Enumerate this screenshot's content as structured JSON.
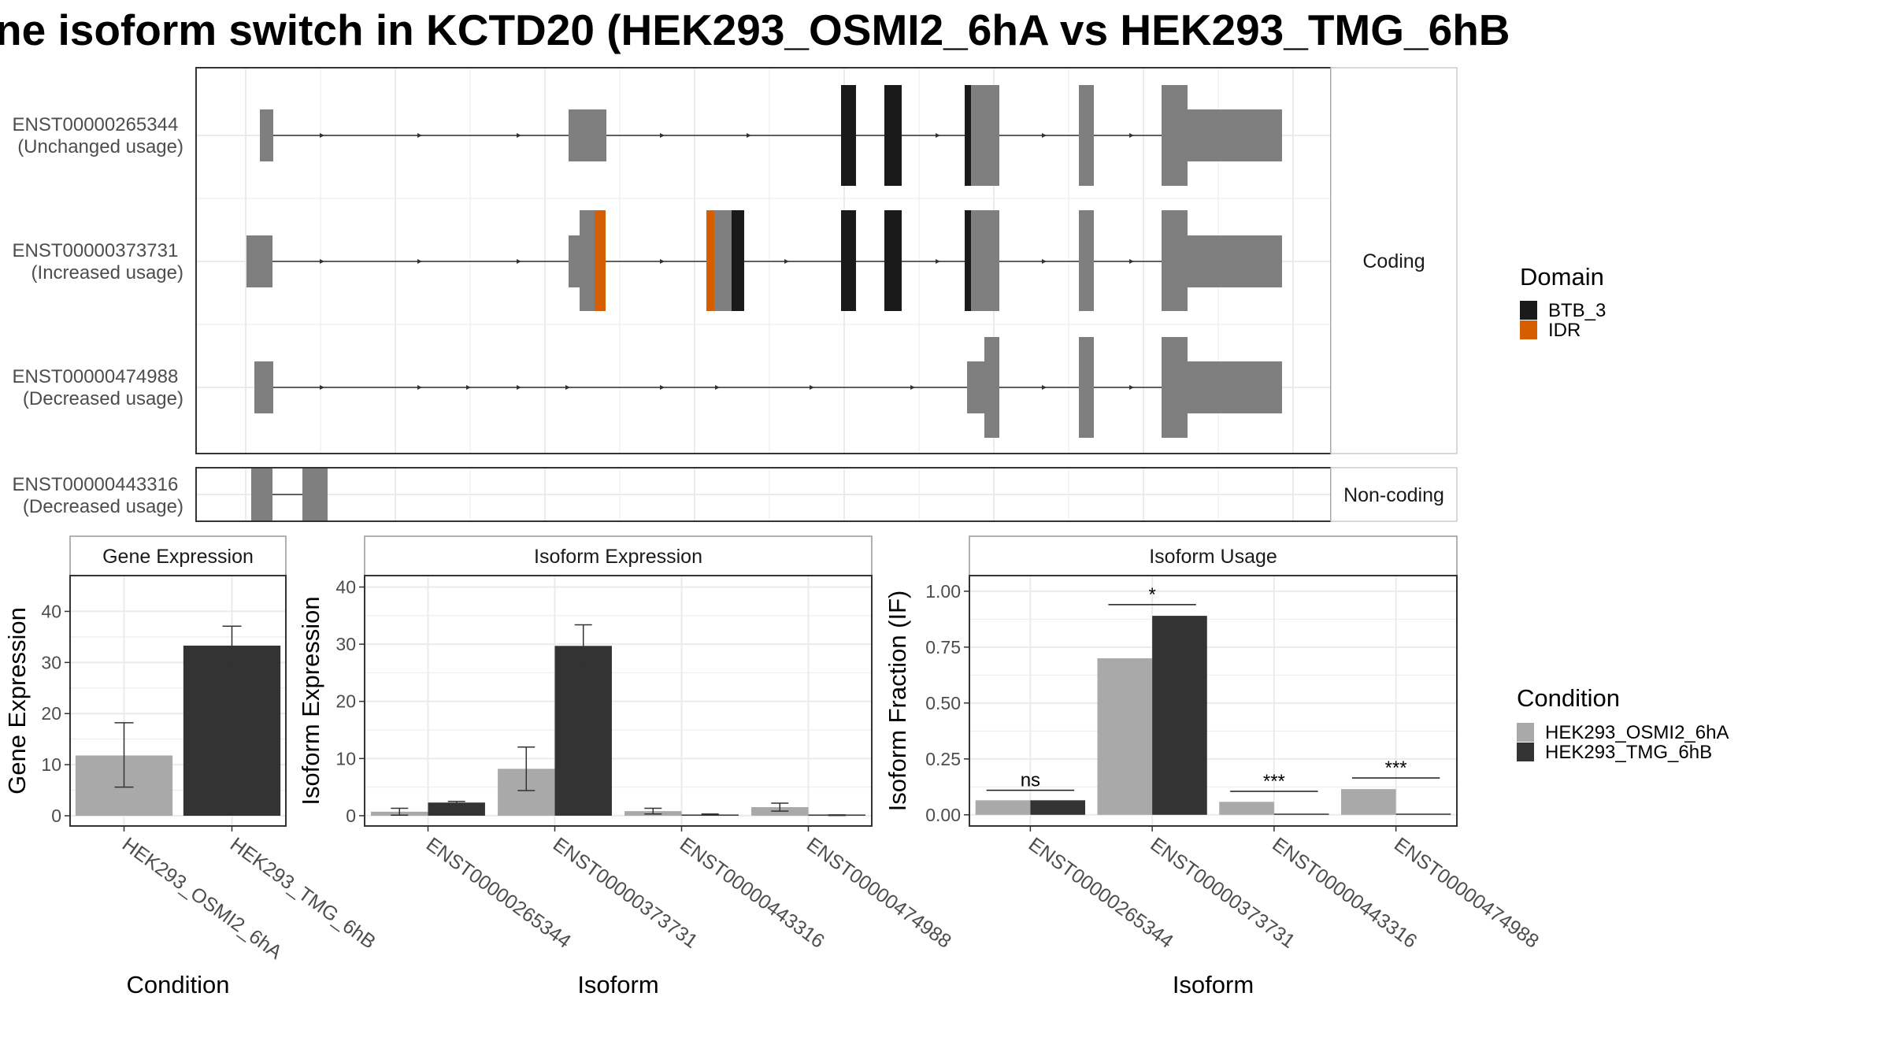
{
  "title": "ne isoform switch in KCTD20 (HEK293_OSMI2_6hA vs HEK293_TMG_6hB",
  "colors": {
    "BTB_3": "#1a1a1a",
    "IDR": "#d55e00",
    "exon": "#7f7f7f",
    "cond_a": "#a9a9a9",
    "cond_b": "#333333"
  },
  "structure": {
    "coding_label": "Coding",
    "noncoding_label": "Non-coding",
    "isoforms": [
      {
        "id": "ENST00000265344",
        "usage": "(Unchanged usage)",
        "group": "coding"
      },
      {
        "id": "ENST00000373731",
        "usage": "(Increased usage)",
        "group": "coding"
      },
      {
        "id": "ENST00000474988",
        "usage": "(Decreased usage)",
        "group": "coding"
      },
      {
        "id": "ENST00000443316",
        "usage": "(Decreased usage)",
        "group": "noncoding"
      }
    ]
  },
  "domain_legend": {
    "title": "Domain",
    "items": [
      {
        "label": "BTB_3",
        "color": "#1a1a1a"
      },
      {
        "label": "IDR",
        "color": "#d55e00"
      }
    ]
  },
  "condition_legend": {
    "title": "Condition",
    "items": [
      {
        "label": "HEK293_OSMI2_6hA",
        "color": "#a9a9a9"
      },
      {
        "label": "HEK293_TMG_6hB",
        "color": "#333333"
      }
    ]
  },
  "chart_data": [
    {
      "type": "bar",
      "title": "Gene Expression",
      "xlabel": "Condition",
      "ylabel": "Gene Expression",
      "categories": [
        "HEK293_OSMI2_6hA",
        "HEK293_TMG_6hB"
      ],
      "values": [
        11.8,
        33.3
      ],
      "error_low": [
        5.6,
        29.5
      ],
      "error_high": [
        18.2,
        37.1
      ],
      "ylim": [
        -2,
        47
      ],
      "yticks": [
        0,
        10,
        20,
        30,
        40
      ],
      "ytick_labels": [
        "0",
        "10",
        "20",
        "30",
        "40"
      ]
    },
    {
      "type": "bar",
      "title": "Isoform Expression",
      "xlabel": "Isoform",
      "ylabel": "Isoform Expression",
      "categories": [
        "ENST00000265344",
        "ENST00000373731",
        "ENST00000443316",
        "ENST00000474988"
      ],
      "series": [
        {
          "name": "HEK293_OSMI2_6hA",
          "values": [
            0.7,
            8.2,
            0.8,
            1.5
          ],
          "error_low": [
            0.1,
            4.4,
            0.3,
            0.8
          ],
          "error_high": [
            1.3,
            12.0,
            1.3,
            2.2
          ]
        },
        {
          "name": "HEK293_TMG_6hB",
          "values": [
            2.3,
            29.7,
            0.2,
            0.1
          ],
          "error_low": [
            2.0,
            26.0,
            0.1,
            0.05
          ],
          "error_high": [
            2.5,
            33.4,
            0.3,
            0.15
          ]
        }
      ],
      "ylim": [
        -1.8,
        42
      ],
      "yticks": [
        0,
        10,
        20,
        30,
        40
      ],
      "ytick_labels": [
        "0",
        "10",
        "20",
        "30",
        "40"
      ]
    },
    {
      "type": "bar",
      "title": "Isoform Usage",
      "xlabel": "Isoform",
      "ylabel": "Isoform Fraction (IF)",
      "categories": [
        "ENST00000265344",
        "ENST00000373731",
        "ENST00000443316",
        "ENST00000474988"
      ],
      "series": [
        {
          "name": "HEK293_OSMI2_6hA",
          "values": [
            0.065,
            0.7,
            0.058,
            0.115
          ]
        },
        {
          "name": "HEK293_TMG_6hB",
          "values": [
            0.065,
            0.89,
            0.005,
            0.0
          ]
        }
      ],
      "significance": [
        {
          "label": "ns",
          "y": 0.11
        },
        {
          "label": "*",
          "y": 0.94
        },
        {
          "label": "***",
          "y": 0.105
        },
        {
          "label": "***",
          "y": 0.165
        }
      ],
      "ylim": [
        -0.05,
        1.07
      ],
      "yticks": [
        0.0,
        0.25,
        0.5,
        0.75,
        1.0
      ],
      "ytick_labels": [
        "0.00",
        "0.25",
        "0.50",
        "0.75",
        "1.00"
      ]
    }
  ]
}
